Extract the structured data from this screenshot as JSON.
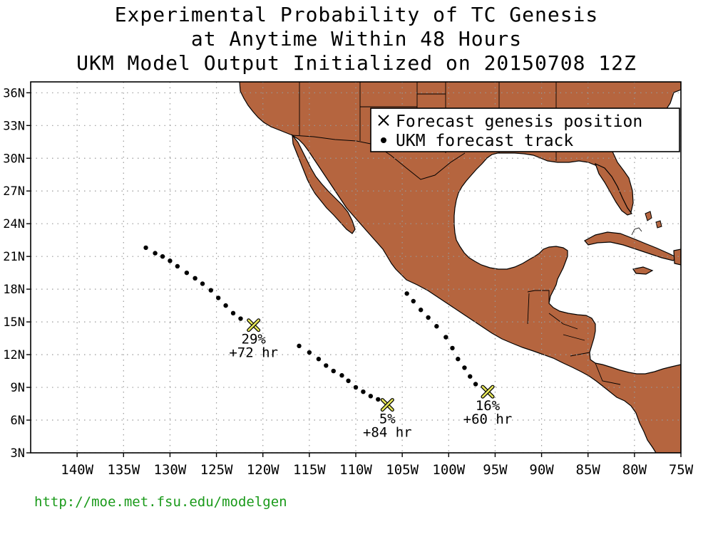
{
  "title": {
    "line1": "Experimental Probability of TC Genesis",
    "line2": "at Anytime Within 48 Hours",
    "line3": "UKM Model Output Initialized on 20150708 12Z"
  },
  "legend": {
    "genesis_label": "Forecast genesis position",
    "track_label": "UKM forecast track"
  },
  "axes": {
    "lon_ticks": [
      "140W",
      "135W",
      "130W",
      "125W",
      "120W",
      "115W",
      "110W",
      "105W",
      "100W",
      "95W",
      "90W",
      "85W",
      "80W",
      "75W"
    ],
    "lon_values": [
      -140,
      -135,
      -130,
      -125,
      -120,
      -115,
      -110,
      -105,
      -100,
      -95,
      -90,
      -85,
      -80,
      -75
    ],
    "lat_ticks": [
      "36N",
      "33N",
      "30N",
      "27N",
      "24N",
      "21N",
      "18N",
      "15N",
      "12N",
      "9N",
      "6N",
      "3N"
    ],
    "lat_values": [
      36,
      33,
      30,
      27,
      24,
      21,
      18,
      15,
      12,
      9,
      6,
      3
    ],
    "lon_range": [
      -145,
      -75
    ],
    "lat_range": [
      3,
      37
    ]
  },
  "colors": {
    "land": "#b5653f",
    "marker": "#e6e65a",
    "url": "#1a9a1a"
  },
  "storms": [
    {
      "prob": "29%",
      "lead": "+72 hr",
      "genesis": [
        -121.0,
        14.7
      ],
      "track": [
        [
          -132.6,
          21.8
        ],
        [
          -131.6,
          21.3
        ],
        [
          -130.8,
          21.0
        ],
        [
          -130.0,
          20.6
        ],
        [
          -129.2,
          20.1
        ],
        [
          -128.2,
          19.5
        ],
        [
          -127.3,
          19.0
        ],
        [
          -126.5,
          18.5
        ],
        [
          -125.6,
          17.9
        ],
        [
          -124.8,
          17.2
        ],
        [
          -124.0,
          16.5
        ],
        [
          -123.2,
          15.8
        ],
        [
          -122.4,
          15.3
        ]
      ]
    },
    {
      "prob": "5%",
      "lead": "+84 hr",
      "genesis": [
        -106.6,
        7.4
      ],
      "track": [
        [
          -116.1,
          12.8
        ],
        [
          -115.0,
          12.2
        ],
        [
          -114.0,
          11.6
        ],
        [
          -113.2,
          11.0
        ],
        [
          -112.4,
          10.5
        ],
        [
          -111.5,
          10.1
        ],
        [
          -110.8,
          9.6
        ],
        [
          -110.0,
          9.0
        ],
        [
          -109.2,
          8.6
        ],
        [
          -108.4,
          8.2
        ],
        [
          -107.6,
          7.9
        ]
      ]
    },
    {
      "prob": "16%",
      "lead": "+60 hr",
      "genesis": [
        -95.8,
        8.6
      ],
      "track": [
        [
          -104.5,
          17.6
        ],
        [
          -103.8,
          16.9
        ],
        [
          -103.0,
          16.1
        ],
        [
          -102.2,
          15.4
        ],
        [
          -101.3,
          14.6
        ],
        [
          -100.3,
          13.6
        ],
        [
          -99.6,
          12.6
        ],
        [
          -99.0,
          11.6
        ],
        [
          -98.3,
          10.8
        ],
        [
          -97.7,
          10.0
        ],
        [
          -97.1,
          9.3
        ]
      ]
    }
  ],
  "footer": {
    "url": "http://moe.met.fsu.edu/modelgen"
  }
}
